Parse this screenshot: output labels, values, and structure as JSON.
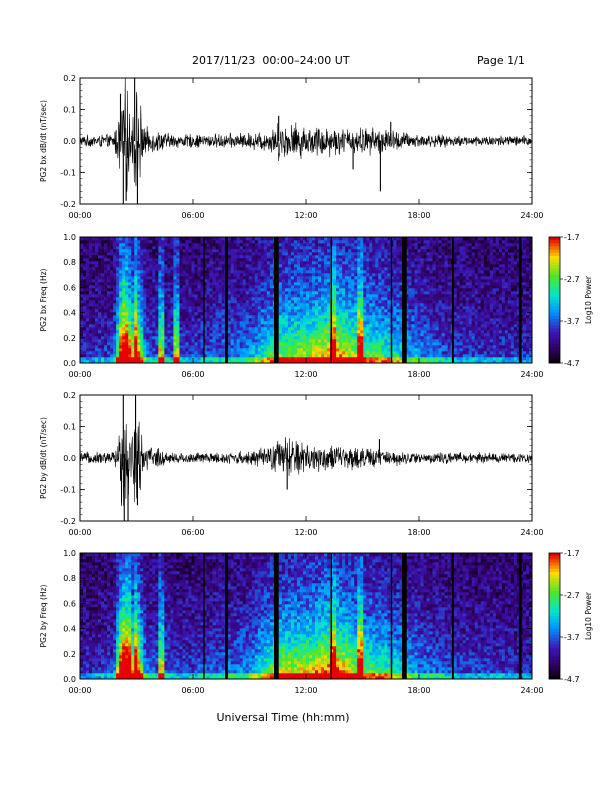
{
  "header": {
    "title": "2017/11/23  00:00–24:00 UT",
    "page": "Page 1/1"
  },
  "xlabel": "Universal Time (hh:mm)",
  "chart_data": [
    {
      "type": "line",
      "ylabel": "PG2 bx dB/dt (nT/sec)",
      "xlim": [
        0,
        24
      ],
      "ylim": [
        -0.2,
        0.2
      ],
      "xticks": [
        "00:00",
        "06:00",
        "12:00",
        "18:00",
        "24:00"
      ],
      "yticks": [
        "-0.2",
        "-0.1",
        "0.0",
        "0.1",
        "0.2"
      ],
      "ytick_values": [
        -0.2,
        -0.1,
        0,
        0.1,
        0.2
      ],
      "envelope": [
        [
          0,
          0.02
        ],
        [
          1.8,
          0.025
        ],
        [
          2.1,
          0.12
        ],
        [
          2.3,
          0.22
        ],
        [
          2.5,
          0.2
        ],
        [
          2.7,
          0.06
        ],
        [
          2.9,
          0.2
        ],
        [
          3.1,
          0.19
        ],
        [
          3.4,
          0.05
        ],
        [
          5,
          0.025
        ],
        [
          7,
          0.025
        ],
        [
          9,
          0.03
        ],
        [
          10,
          0.04
        ],
        [
          10.6,
          0.07
        ],
        [
          11,
          0.06
        ],
        [
          11.5,
          0.07
        ],
        [
          12,
          0.05
        ],
        [
          13,
          0.06
        ],
        [
          14,
          0.045
        ],
        [
          15,
          0.05
        ],
        [
          16,
          0.05
        ],
        [
          17,
          0.035
        ],
        [
          18,
          0.025
        ],
        [
          20,
          0.02
        ],
        [
          24,
          0.02
        ]
      ],
      "spikes": [
        [
          2.15,
          0.15
        ],
        [
          2.3,
          -0.2
        ],
        [
          2.45,
          -0.19
        ],
        [
          2.9,
          0.2
        ],
        [
          3.05,
          -0.21
        ],
        [
          10.55,
          0.08
        ],
        [
          15.95,
          -0.16
        ],
        [
          14.5,
          -0.09
        ],
        [
          16.5,
          0.06
        ]
      ]
    },
    {
      "type": "heatmap",
      "ylabel": "PG2 bx Freq (Hz)",
      "colorbar_label": "Log10 Power",
      "colorbar_ticks": [
        "-1.7",
        "-2.7",
        "-3.7",
        "-4.7"
      ],
      "colorbar_values": [
        -1.7,
        -2.7,
        -3.7,
        -4.7
      ],
      "zlim": [
        -4.7,
        -1.7
      ],
      "xlim": [
        0,
        24
      ],
      "ylim": [
        0,
        1.0
      ],
      "xticks": [
        "00:00",
        "06:00",
        "12:00",
        "18:00",
        "24:00"
      ],
      "yticks": [
        "0.0",
        "0.2",
        "0.4",
        "0.6",
        "0.8",
        "1.0"
      ],
      "ytick_values": [
        0,
        0.2,
        0.4,
        0.6,
        0.8,
        1.0
      ],
      "activity": [
        [
          0,
          0.1
        ],
        [
          1.8,
          0.15
        ],
        [
          2.2,
          0.9
        ],
        [
          2.5,
          0.95
        ],
        [
          2.8,
          0.6
        ],
        [
          3,
          0.85
        ],
        [
          3.5,
          0.2
        ],
        [
          6,
          0.15
        ],
        [
          9,
          0.25
        ],
        [
          10.5,
          0.5
        ],
        [
          12,
          0.55
        ],
        [
          13.5,
          0.7
        ],
        [
          15,
          0.5
        ],
        [
          16.5,
          0.4
        ],
        [
          18,
          0.25
        ],
        [
          20,
          0.15
        ],
        [
          24,
          0.12
        ]
      ],
      "bright_columns": [
        2.3,
        2.5,
        2.95,
        4.3,
        5.1,
        13.45,
        14.9
      ],
      "gap_columns": [
        [
          6.55,
          6.62
        ],
        [
          7.7,
          7.85
        ],
        [
          10.3,
          10.55
        ],
        [
          13.3,
          13.38
        ],
        [
          16.5,
          16.58
        ],
        [
          17.1,
          17.35
        ],
        [
          19.75,
          19.85
        ],
        [
          23.3,
          23.45
        ]
      ]
    },
    {
      "type": "line",
      "ylabel": "PG2 by dB/dt (nT/sec)",
      "xlim": [
        0,
        24
      ],
      "ylim": [
        -0.2,
        0.2
      ],
      "xticks": [
        "00:00",
        "06:00",
        "12:00",
        "18:00",
        "24:00"
      ],
      "yticks": [
        "-0.2",
        "-0.1",
        "0.0",
        "0.1",
        "0.2"
      ],
      "ytick_values": [
        -0.2,
        -0.1,
        0,
        0.1,
        0.2
      ],
      "envelope": [
        [
          0,
          0.02
        ],
        [
          1.8,
          0.025
        ],
        [
          2.1,
          0.1
        ],
        [
          2.3,
          0.22
        ],
        [
          2.5,
          0.19
        ],
        [
          2.7,
          0.06
        ],
        [
          2.9,
          0.2
        ],
        [
          3.1,
          0.16
        ],
        [
          3.4,
          0.05
        ],
        [
          5,
          0.02
        ],
        [
          7,
          0.02
        ],
        [
          9,
          0.025
        ],
        [
          10,
          0.04
        ],
        [
          10.8,
          0.08
        ],
        [
          11.3,
          0.07
        ],
        [
          12,
          0.06
        ],
        [
          12.5,
          0.05
        ],
        [
          13.5,
          0.045
        ],
        [
          15,
          0.04
        ],
        [
          16,
          0.03
        ],
        [
          17,
          0.025
        ],
        [
          18,
          0.02
        ],
        [
          20,
          0.02
        ],
        [
          24,
          0.018
        ]
      ],
      "spikes": [
        [
          2.3,
          0.2
        ],
        [
          2.35,
          -0.21
        ],
        [
          2.55,
          -0.2
        ],
        [
          2.95,
          0.2
        ],
        [
          3.05,
          -0.15
        ],
        [
          11,
          -0.1
        ],
        [
          15.9,
          0.06
        ]
      ]
    },
    {
      "type": "heatmap",
      "ylabel": "PG2 by Freq (Hz)",
      "colorbar_label": "Log10 Power",
      "colorbar_ticks": [
        "-1.7",
        "-2.7",
        "-3.7",
        "-4.7"
      ],
      "colorbar_values": [
        -1.7,
        -2.7,
        -3.7,
        -4.7
      ],
      "zlim": [
        -4.7,
        -1.7
      ],
      "xlim": [
        0,
        24
      ],
      "ylim": [
        0,
        1.0
      ],
      "xticks": [
        "00:00",
        "06:00",
        "12:00",
        "18:00",
        "24:00"
      ],
      "yticks": [
        "0.0",
        "0.2",
        "0.4",
        "0.6",
        "0.8",
        "1.0"
      ],
      "ytick_values": [
        0,
        0.2,
        0.4,
        0.6,
        0.8,
        1.0
      ],
      "activity": [
        [
          0,
          0.1
        ],
        [
          1.8,
          0.15
        ],
        [
          2.2,
          0.95
        ],
        [
          2.5,
          0.95
        ],
        [
          2.8,
          0.6
        ],
        [
          3,
          0.85
        ],
        [
          3.5,
          0.2
        ],
        [
          6,
          0.15
        ],
        [
          9,
          0.25
        ],
        [
          10.5,
          0.55
        ],
        [
          12,
          0.6
        ],
        [
          13.5,
          0.75
        ],
        [
          15,
          0.5
        ],
        [
          16.5,
          0.4
        ],
        [
          18,
          0.25
        ],
        [
          20,
          0.15
        ],
        [
          24,
          0.12
        ]
      ],
      "bright_columns": [
        2.3,
        2.55,
        2.95,
        4.3,
        13.45,
        14.9
      ],
      "gap_columns": [
        [
          6.55,
          6.62
        ],
        [
          7.7,
          7.85
        ],
        [
          10.3,
          10.55
        ],
        [
          13.3,
          13.38
        ],
        [
          16.5,
          16.58
        ],
        [
          17.1,
          17.35
        ],
        [
          19.75,
          19.85
        ],
        [
          23.3,
          23.45
        ]
      ]
    }
  ]
}
